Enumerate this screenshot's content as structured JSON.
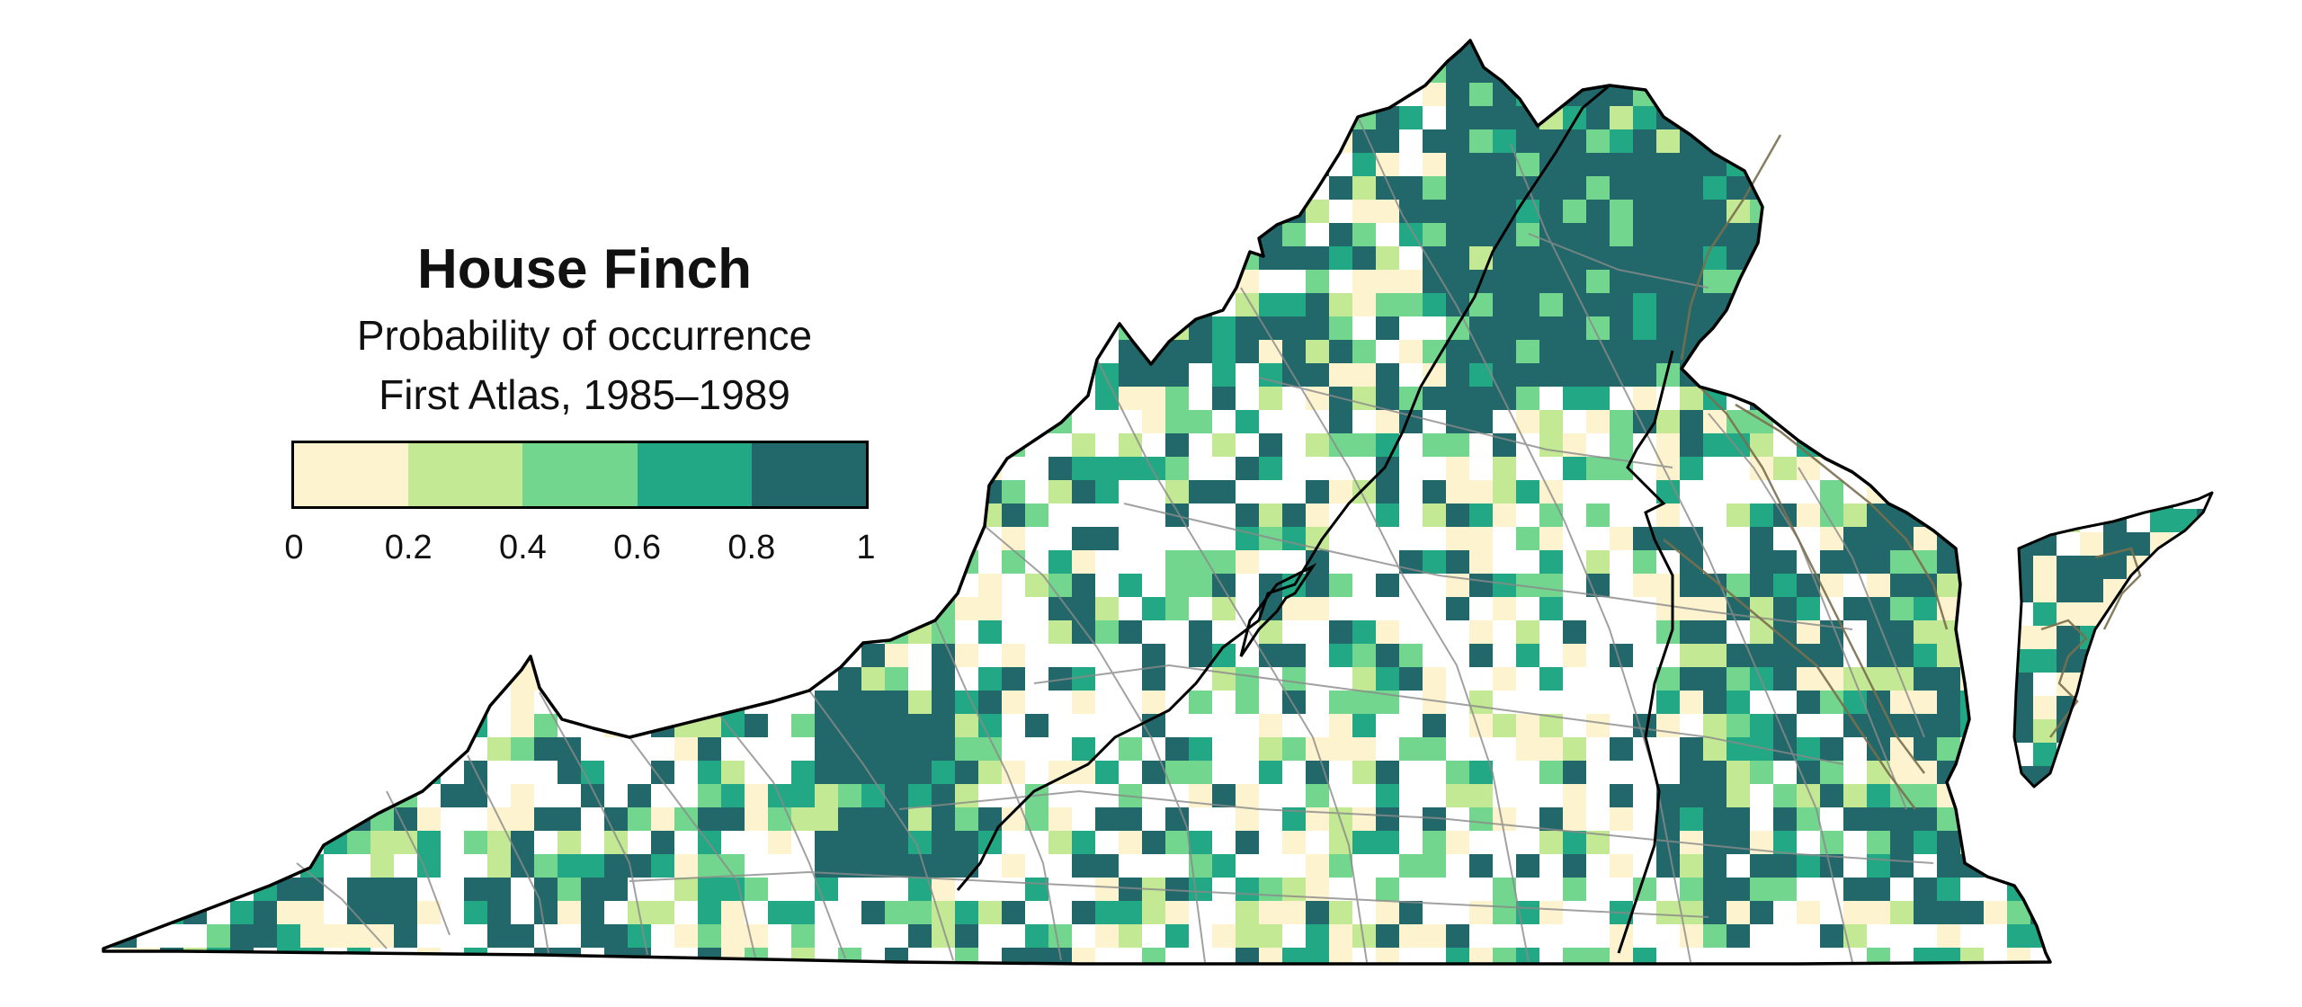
{
  "legend": {
    "title": "House Finch",
    "subtitle": "Probability of occurrence",
    "period": "First Atlas, 1985–1989",
    "ticks": [
      "0",
      "0.2",
      "0.4",
      "0.6",
      "0.8",
      "1"
    ],
    "bins": [
      {
        "range": "0–0.2",
        "color": "#fdf3cf"
      },
      {
        "range": "0.2–0.4",
        "color": "#c3e994"
      },
      {
        "range": "0.4–0.6",
        "color": "#72d68f"
      },
      {
        "range": "0.6–0.8",
        "color": "#22a884"
      },
      {
        "range": "0.8–1",
        "color": "#22686b"
      }
    ]
  },
  "map": {
    "region": "Virginia",
    "style": {
      "state_outline_color": "#000000",
      "county_line_color": "#8a8a8a",
      "physiographic_line_color": "#000000",
      "water_line_color": "#7a6f4e",
      "land_fill_color": "#fdfdfd"
    },
    "cell_value_summary": {
      "high_probability_areas": [
        "Northern Virginia",
        "Shenandoah Valley",
        "Southwest Virginia ridges",
        "Coastal Plain / Tidewater",
        "Eastern Shore"
      ],
      "low_probability_areas": [
        "Southern Piedmont",
        "Southside"
      ]
    }
  }
}
